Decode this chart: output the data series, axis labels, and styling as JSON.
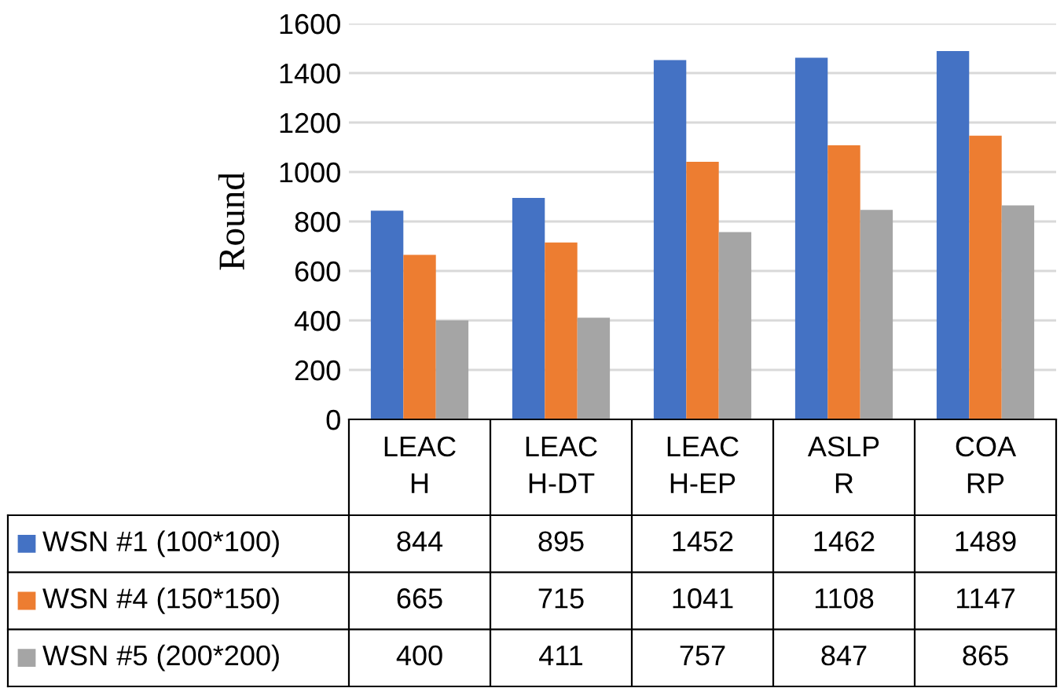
{
  "chart_data": {
    "type": "bar",
    "ylabel": "Round",
    "categories": [
      "LEAC\nH",
      "LEAC\nH-DT",
      "LEAC\nH-EP",
      "ASLP\nR",
      "COA\nRP"
    ],
    "series": [
      {
        "name": "WSN #1 (100*100)",
        "color": "#4472c4",
        "values": [
          844,
          895,
          1452,
          1462,
          1489
        ]
      },
      {
        "name": "WSN #4 (150*150)",
        "color": "#ed7d31",
        "values": [
          665,
          715,
          1041,
          1108,
          1147
        ]
      },
      {
        "name": "WSN #5 (200*200)",
        "color": "#a5a5a5",
        "values": [
          400,
          411,
          757,
          847,
          865
        ]
      }
    ],
    "ylim": [
      0,
      1600
    ],
    "yticks": [
      0,
      200,
      400,
      600,
      800,
      1000,
      1200,
      1400,
      1600
    ],
    "grid": "y",
    "legend": "bottom",
    "data_labels": true
  }
}
